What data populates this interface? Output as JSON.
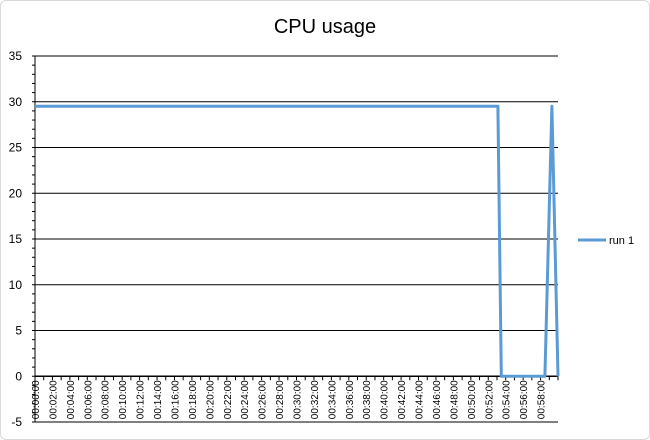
{
  "chart_data": {
    "type": "line",
    "title": "CPU usage",
    "xlabel": "",
    "ylabel": "",
    "ylim": [
      -5,
      35
    ],
    "yticks": [
      -5,
      0,
      5,
      10,
      15,
      20,
      25,
      30,
      35
    ],
    "x_tick_labels": [
      "00:00:00",
      "00:02:00",
      "00:04:00",
      "00:06:00",
      "00:08:00",
      "00:10:00",
      "00:12:00",
      "00:14:00",
      "00:16:00",
      "00:18:00",
      "00:20:00",
      "00:22:00",
      "00:24:00",
      "00:26:00",
      "00:28:00",
      "00:30:00",
      "00:32:00",
      "00:34:00",
      "00:36:00",
      "00:38:00",
      "00:40:00",
      "00:42:00",
      "00:44:00",
      "00:46:00",
      "00:48:00",
      "00:50:00",
      "00:52:00",
      "00:54:00",
      "00:56:00",
      "00:58:00"
    ],
    "xlim_minutes": [
      0,
      60
    ],
    "grid": "horizontal",
    "legend_position": "right",
    "series": [
      {
        "name": "run 1",
        "color": "#5b9bd5",
        "x_minutes": [
          0,
          53.1,
          53.5,
          58.5,
          59.3,
          60
        ],
        "values": [
          29.5,
          29.5,
          0,
          0,
          29.5,
          0
        ]
      }
    ]
  }
}
